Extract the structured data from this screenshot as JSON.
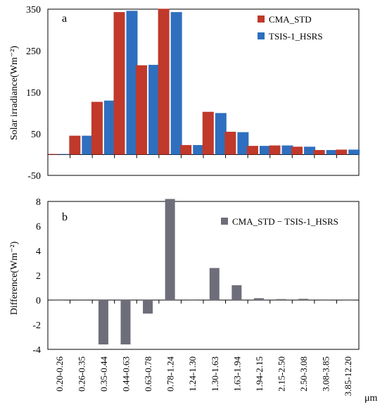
{
  "chart_data": [
    {
      "type": "bar",
      "panel_label": "a",
      "ylabel": "Solar irradiance(Wm⁻²)",
      "ylim": [
        -50,
        350
      ],
      "yticks": [
        -50,
        50,
        150,
        250,
        350
      ],
      "categories": [
        "0.20-0.26",
        "0.26-0.35",
        "0.35-0.44",
        "0.44-0.63",
        "0.63-0.78",
        "0.78-1.24",
        "1.24-1.30",
        "1.30-1.63",
        "1.63-1.94",
        "1.94-2.15",
        "2.15-2.50",
        "2.50-3.08",
        "3.08-3.85",
        "3.85-12.20"
      ],
      "legend_position": "top-right",
      "series": [
        {
          "name": "CMA_STD",
          "color": "#c0392b",
          "values": [
            1.5,
            45.5,
            127,
            343,
            215,
            351,
            23,
            103,
            55,
            21,
            22,
            19,
            11,
            12
          ]
        },
        {
          "name": "TSIS-1_HSRS",
          "color": "#2e6fbf",
          "values": [
            1.5,
            45.5,
            130,
            346,
            216,
            343,
            23,
            100,
            54,
            21,
            22,
            19,
            11,
            12
          ]
        }
      ]
    },
    {
      "type": "bar",
      "panel_label": "b",
      "ylabel": "Difference(Wm⁻²)",
      "ylim": [
        -4,
        8
      ],
      "yticks": [
        -4,
        -2,
        0,
        2,
        4,
        6,
        8
      ],
      "xunit": "μm",
      "categories": [
        "0.20-0.26",
        "0.26-0.35",
        "0.35-0.44",
        "0.44-0.63",
        "0.63-0.78",
        "0.78-1.24",
        "1.24-1.30",
        "1.30-1.63",
        "1.63-1.94",
        "1.94-2.15",
        "2.15-2.50",
        "2.50-3.08",
        "3.08-3.85",
        "3.85-12.20"
      ],
      "legend_position": "top-right",
      "series": [
        {
          "name": "CMA_STD − TSIS-1_HSRS",
          "color": "#6e6e7a",
          "values": [
            0.0,
            -0.05,
            -3.6,
            -3.6,
            -1.1,
            8.2,
            0.0,
            2.6,
            1.2,
            0.15,
            0.08,
            0.1,
            0.0,
            0.0
          ]
        }
      ]
    }
  ]
}
